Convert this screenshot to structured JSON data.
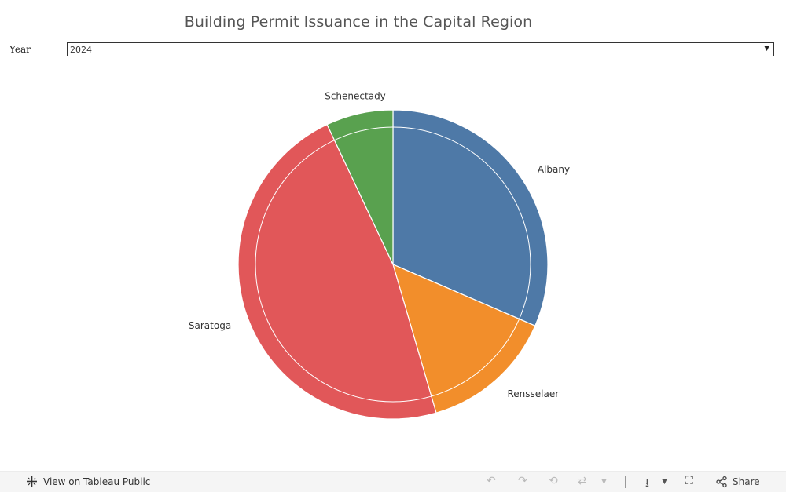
{
  "title": "Building Permit Issuance in the Capital Region",
  "filter": {
    "label": "Year",
    "selected": "2024"
  },
  "chart_data": {
    "type": "pie",
    "title": "Building Permit Issuance in the Capital Region",
    "slices": [
      {
        "label": "Albany",
        "value": 31.5,
        "color": "#4e79a7"
      },
      {
        "label": "Rensselaer",
        "value": 14.0,
        "color": "#f28e2b"
      },
      {
        "label": "Saratoga",
        "value": 47.5,
        "color": "#e15759"
      },
      {
        "label": "Schenectady",
        "value": 7.0,
        "color": "#59a14f"
      }
    ],
    "legend": "none"
  },
  "footer": {
    "brand_text": "View on Tableau Public",
    "share_label": "Share"
  },
  "icons": {
    "brand": "tableau-logo-icon",
    "undo": "undo-icon",
    "redo": "redo-icon",
    "revert": "revert-icon",
    "refresh": "refresh-icon",
    "download": "download-icon",
    "fullscreen": "fullscreen-icon",
    "share": "share-icon"
  }
}
